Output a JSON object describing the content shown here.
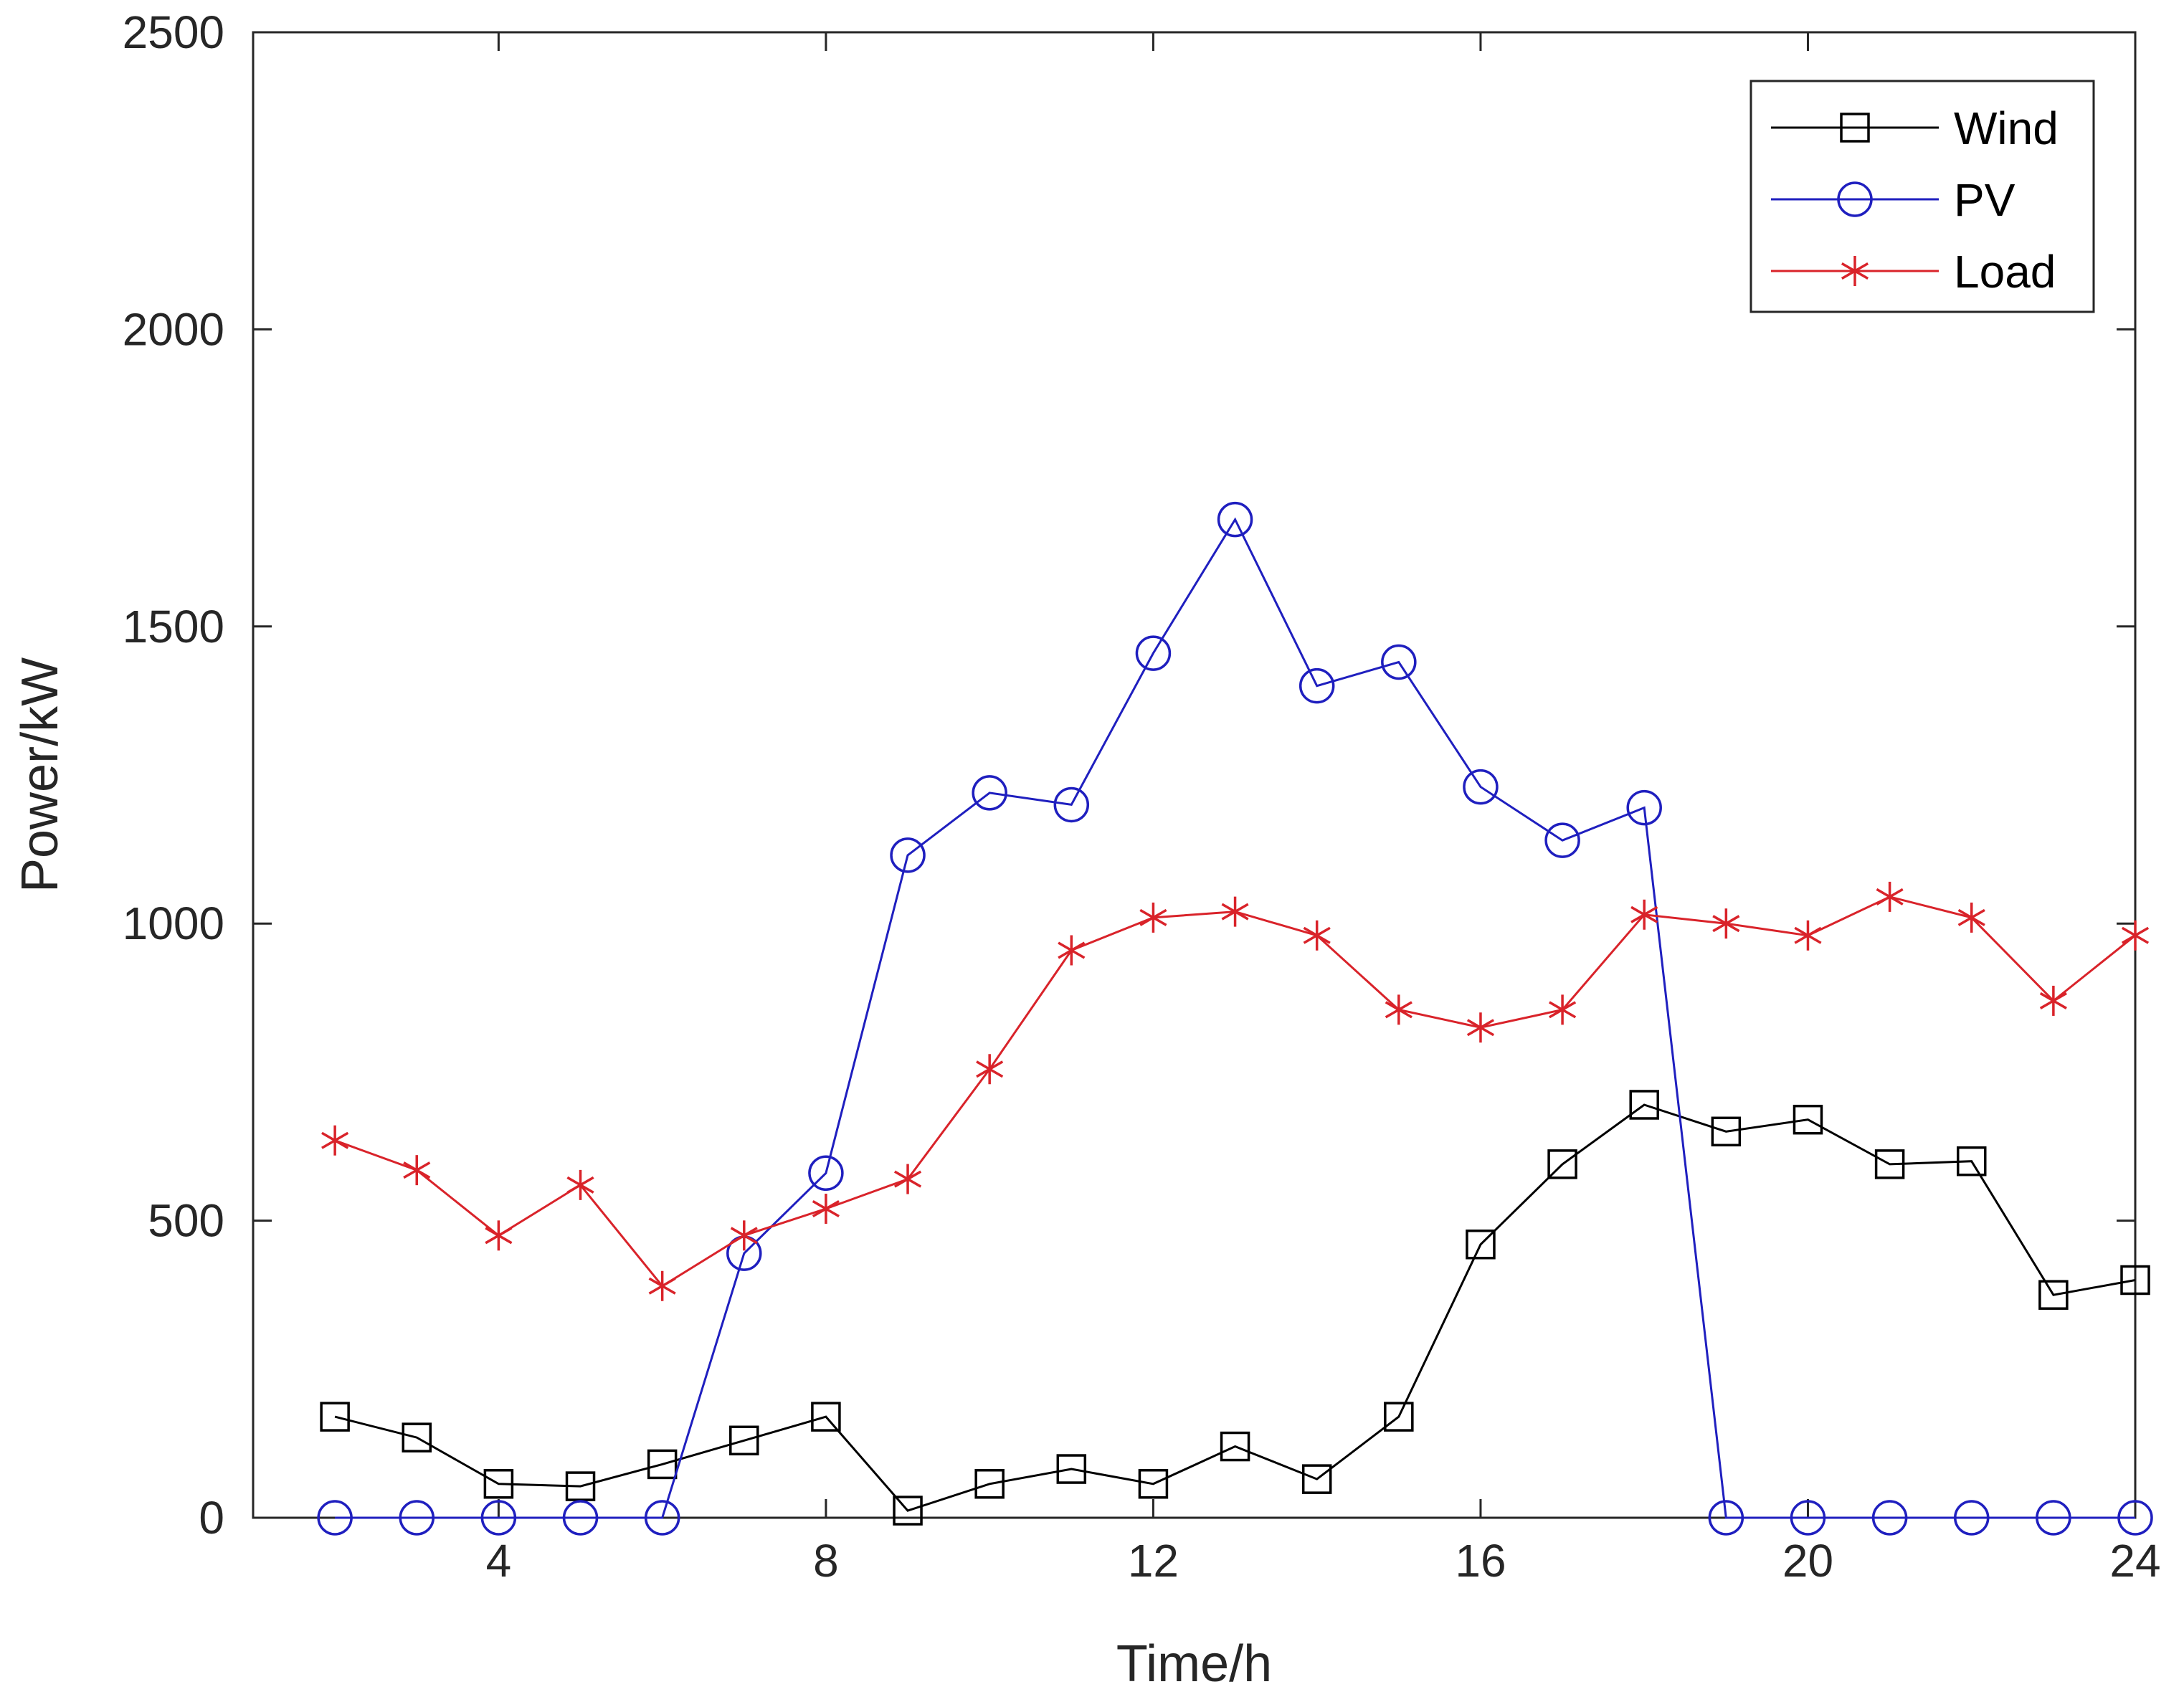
{
  "chart_data": {
    "type": "line",
    "title": "",
    "xlabel": "Time/h",
    "ylabel": "Power/kW",
    "xlim": [
      1,
      24
    ],
    "ylim": [
      0,
      2500
    ],
    "xticks": [
      4,
      8,
      12,
      16,
      20,
      24
    ],
    "yticks": [
      0,
      500,
      1000,
      1500,
      2000,
      2500
    ],
    "x": [
      2,
      3,
      4,
      5,
      6,
      7,
      8,
      9,
      10,
      11,
      12,
      13,
      14,
      15,
      16,
      17,
      18,
      19,
      20,
      21,
      22,
      23,
      24
    ],
    "legend_position": "top-right",
    "series": [
      {
        "name": "Wind",
        "color": "#000000",
        "marker": "square",
        "values": [
          170,
          135,
          57,
          53,
          90,
          130,
          170,
          12,
          57,
          82,
          57,
          120,
          65,
          170,
          460,
          595,
          695,
          650,
          670,
          595,
          600,
          375,
          400
        ]
      },
      {
        "name": "PV",
        "color": "#1f1fbf",
        "marker": "circle",
        "values": [
          0,
          0,
          0,
          0,
          0,
          445,
          580,
          1115,
          1220,
          1200,
          1455,
          1680,
          1400,
          1440,
          1230,
          1140,
          1195,
          0,
          0,
          0,
          0,
          0,
          0
        ]
      },
      {
        "name": "Load",
        "color": "#d9232a",
        "marker": "asterisk",
        "values": [
          635,
          585,
          475,
          560,
          390,
          475,
          520,
          570,
          755,
          955,
          1010,
          1020,
          980,
          855,
          825,
          855,
          1015,
          1000,
          980,
          1045,
          1010,
          870,
          980
        ]
      }
    ]
  }
}
